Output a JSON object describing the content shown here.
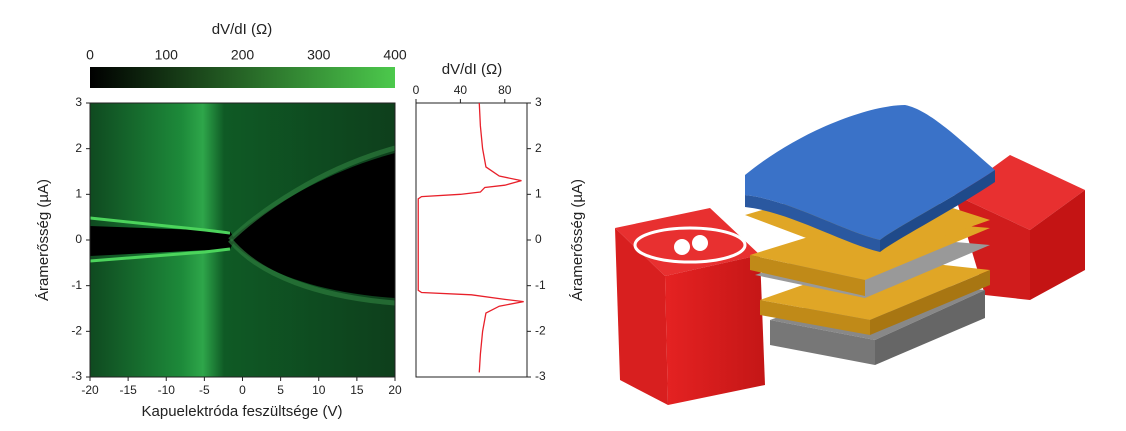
{
  "chart_data": [
    {
      "type": "heatmap",
      "colorbar_title": "dV/dI (Ω)",
      "colorbar_lim": [
        0,
        400
      ],
      "colorbar_ticks": [
        0,
        100,
        200,
        300,
        400
      ],
      "colormap": [
        "#000000",
        "#4cc94c"
      ],
      "x_label": "Kapuelektróda feszültsége (V)",
      "y_label": "Áramerősség (µA)",
      "xlim": [
        -20,
        20
      ],
      "xticks": [
        -20,
        -15,
        -10,
        -5,
        0,
        5,
        10,
        15,
        20
      ],
      "ylim": [
        -3,
        3
      ],
      "yticks": [
        -3,
        -2,
        -1,
        0,
        1,
        2,
        3
      ]
    },
    {
      "type": "line",
      "title": "dV/dI (Ω)",
      "y_label": "Áramerősség (µA)",
      "xlim": [
        0,
        100
      ],
      "xticks": [
        0,
        40,
        80
      ],
      "ylim": [
        -3,
        3
      ],
      "yticks": [
        -3,
        -2,
        -1,
        0,
        1,
        2,
        3
      ],
      "series": [
        {
          "color": "#e8202a",
          "x": [
            57,
            58,
            60,
            63,
            75,
            95,
            80,
            62,
            58,
            40,
            5,
            2,
            2,
            2,
            5,
            50,
            80,
            97,
            75,
            63,
            60,
            58,
            57
          ],
          "values": [
            3,
            2.5,
            2,
            1.6,
            1.4,
            1.3,
            1.2,
            1.15,
            1.05,
            1.0,
            0.95,
            0.9,
            0,
            -1.1,
            -1.15,
            -1.2,
            -1.3,
            -1.35,
            -1.45,
            -1.6,
            -2,
            -2.5,
            -2.9
          ]
        }
      ]
    }
  ]
}
